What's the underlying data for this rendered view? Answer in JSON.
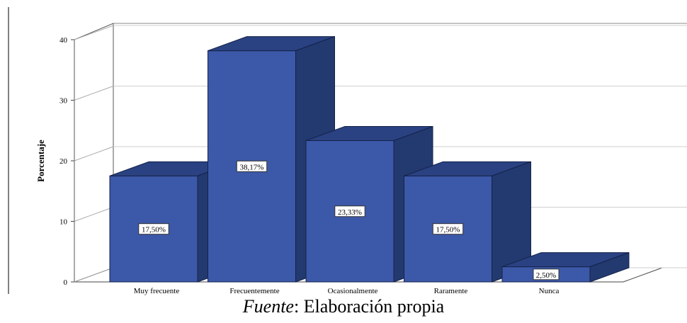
{
  "chart_data": {
    "type": "bar",
    "style": "3d",
    "categories": [
      "Muy frecuente",
      "Frecuentemente",
      "Ocasionalmente",
      "Raramente",
      "Nunca"
    ],
    "values": [
      17.5,
      38.17,
      23.33,
      17.5,
      2.5
    ],
    "data_labels": [
      "17,50%",
      "38,17%",
      "23,33%",
      "17,50%",
      "2,50%"
    ],
    "ylabel": "Porcentaje",
    "xlabel": "",
    "title": "",
    "ylim": [
      0,
      40
    ],
    "yticks": [
      "0",
      "10",
      "20",
      "30",
      "40"
    ],
    "grid": true,
    "colors": {
      "bar_front": "#3c58a8",
      "bar_side": "#233a70",
      "bar_top": "#2a4282",
      "edge": "#14224a"
    }
  },
  "caption": {
    "source_label": "Fuente",
    "source_text": ": Elaboración propia"
  }
}
